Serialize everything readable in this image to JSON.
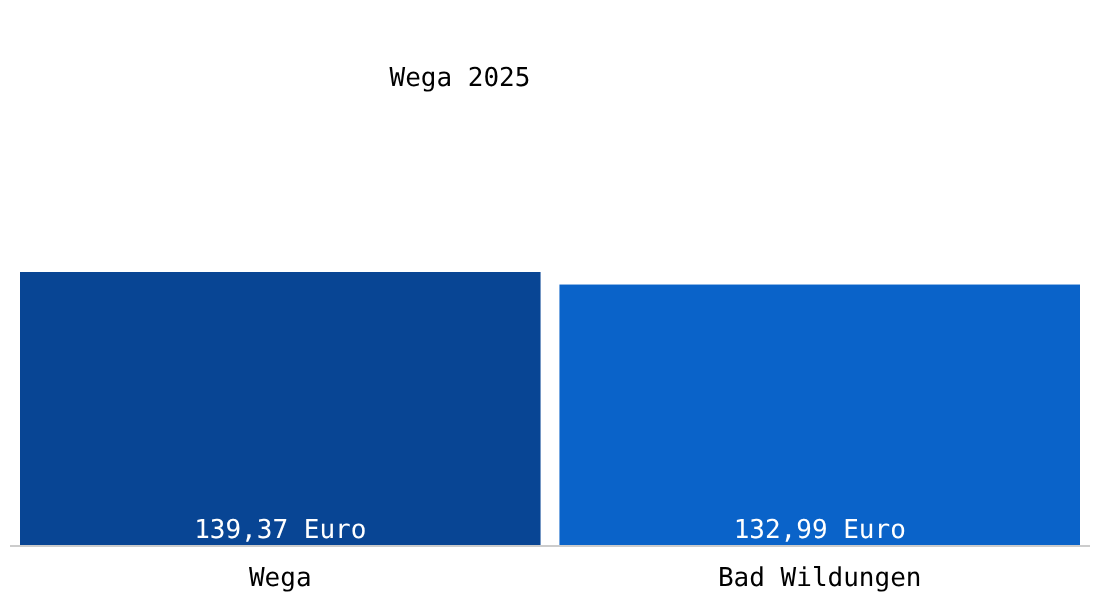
{
  "chart_data": {
    "type": "bar",
    "title": "Wega 2025",
    "categories": [
      "Wega",
      "Bad Wildungen"
    ],
    "values": [
      139.37,
      132.99
    ],
    "colors": [
      "#084594",
      "#0a63c9"
    ],
    "value_labels": [
      "139,37 Euro",
      "132,99 Euro"
    ]
  }
}
